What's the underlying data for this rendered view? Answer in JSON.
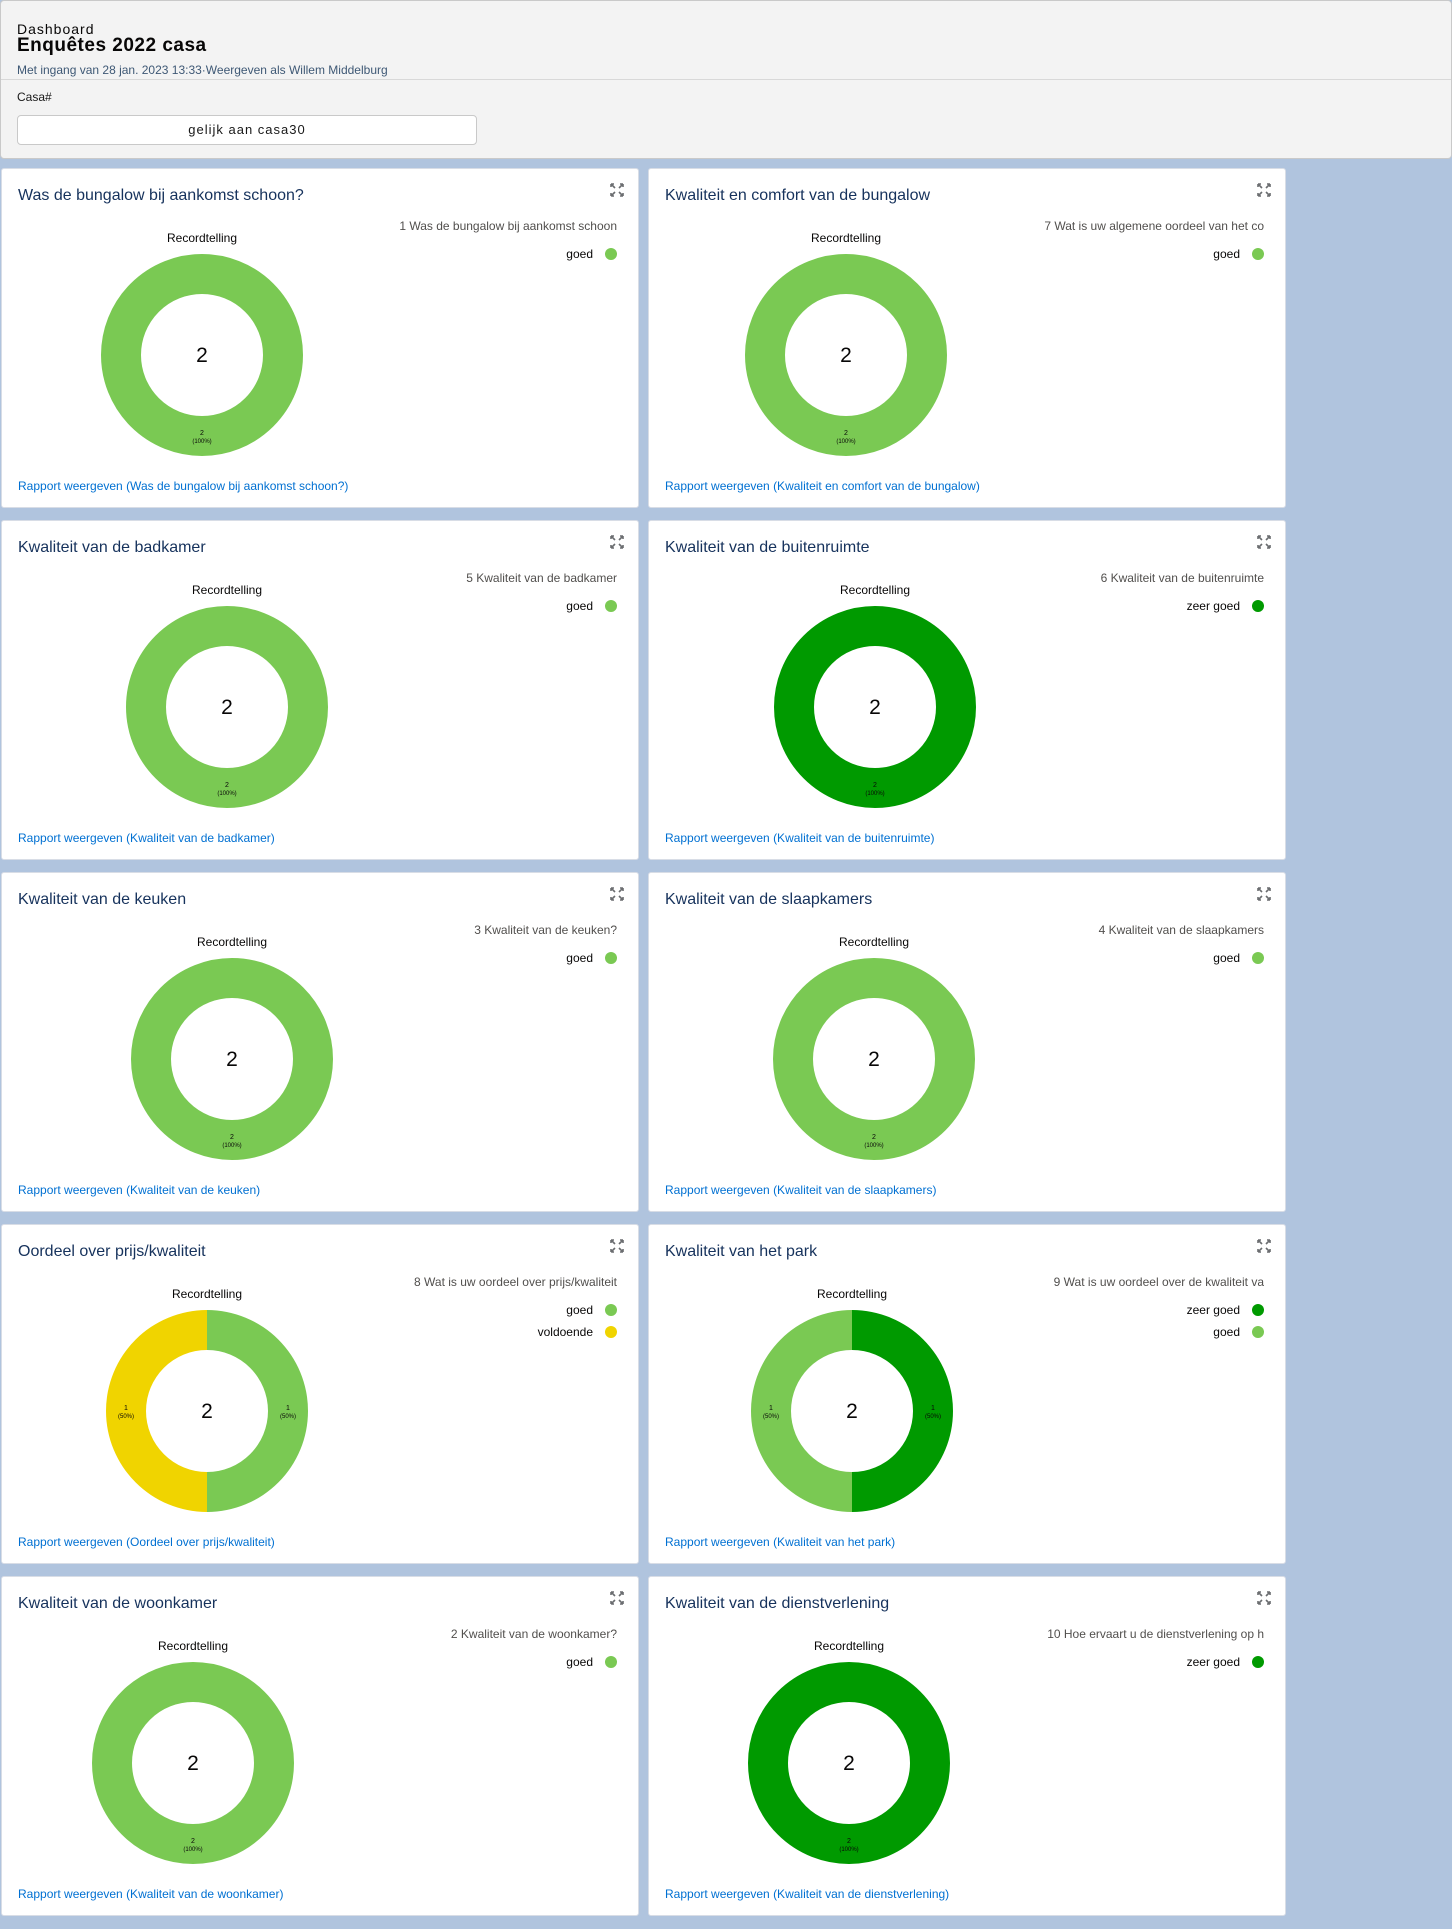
{
  "header": {
    "subtitle": "Dashboard",
    "title": "Enquêtes 2022 casa",
    "meta": "Met ingang van 28 jan. 2023 13:33·Weergeven als Willem Middelburg",
    "filter_label": "Casa#",
    "filter_value": "gelijk aan casa30"
  },
  "colors": {
    "goed": "#7ac953",
    "zeer_goed": "#009a00",
    "voldoende": "#f0d400",
    "link": "#0070d2"
  },
  "cards": [
    {
      "title": "Was de bungalow bij aankomst schoon?",
      "legend_title": "1 Was de bungalow bij aankomst schoon",
      "chart_heading": "Recordtelling",
      "total": "2",
      "link": "Rapport weergeven (Was de bungalow bij aankomst schoon?)",
      "legend": [
        {
          "label": "goed",
          "color": "#7ac953"
        }
      ],
      "chart_data": {
        "type": "pie",
        "categories": [
          "goed"
        ],
        "values": [
          2
        ],
        "labels": [
          [
            "2",
            "(100%)"
          ]
        ],
        "colors": [
          "#7ac953"
        ]
      }
    },
    {
      "title": "Kwaliteit en comfort van de bungalow",
      "legend_title": "7 Wat is uw  algemene oordeel van het co",
      "chart_heading": "Recordtelling",
      "total": "2",
      "link": "Rapport weergeven (Kwaliteit en comfort van de bungalow)",
      "legend": [
        {
          "label": "goed",
          "color": "#7ac953"
        }
      ],
      "chart_data": {
        "type": "pie",
        "categories": [
          "goed"
        ],
        "values": [
          2
        ],
        "labels": [
          [
            "2",
            "(100%)"
          ]
        ],
        "colors": [
          "#7ac953"
        ]
      }
    },
    {
      "title": "Kwaliteit van de badkamer",
      "legend_title": "5 Kwaliteit van de badkamer",
      "chart_heading": "Recordtelling",
      "total": "2",
      "link": "Rapport weergeven (Kwaliteit van de badkamer)",
      "legend": [
        {
          "label": "goed",
          "color": "#7ac953"
        }
      ],
      "chart_data": {
        "type": "pie",
        "categories": [
          "goed"
        ],
        "values": [
          2
        ],
        "labels": [
          [
            "2",
            "(100%)"
          ]
        ],
        "colors": [
          "#7ac953"
        ]
      }
    },
    {
      "title": "Kwaliteit van de buitenruimte",
      "legend_title": "6 Kwaliteit van de buitenruimte",
      "chart_heading": "Recordtelling",
      "total": "2",
      "link": "Rapport weergeven (Kwaliteit van de buitenruimte)",
      "legend": [
        {
          "label": "zeer goed",
          "color": "#009a00"
        }
      ],
      "chart_data": {
        "type": "pie",
        "categories": [
          "zeer goed"
        ],
        "values": [
          2
        ],
        "labels": [
          [
            "2",
            "(100%)"
          ]
        ],
        "colors": [
          "#009a00"
        ]
      }
    },
    {
      "title": "Kwaliteit van de keuken",
      "legend_title": "3 Kwaliteit van de keuken?",
      "chart_heading": "Recordtelling",
      "total": "2",
      "link": "Rapport weergeven (Kwaliteit van de keuken)",
      "legend": [
        {
          "label": "goed",
          "color": "#7ac953"
        }
      ],
      "chart_data": {
        "type": "pie",
        "categories": [
          "goed"
        ],
        "values": [
          2
        ],
        "labels": [
          [
            "2",
            "(100%)"
          ]
        ],
        "colors": [
          "#7ac953"
        ]
      }
    },
    {
      "title": "Kwaliteit van de slaapkamers",
      "legend_title": "4 Kwaliteit van de slaapkamers",
      "chart_heading": "Recordtelling",
      "total": "2",
      "link": "Rapport weergeven (Kwaliteit van de slaapkamers)",
      "legend": [
        {
          "label": "goed",
          "color": "#7ac953"
        }
      ],
      "chart_data": {
        "type": "pie",
        "categories": [
          "goed"
        ],
        "values": [
          2
        ],
        "labels": [
          [
            "2",
            "(100%)"
          ]
        ],
        "colors": [
          "#7ac953"
        ]
      }
    },
    {
      "title": "Oordeel over prijs/kwaliteit",
      "legend_title": "8 Wat is uw oordeel over prijs/kwaliteit",
      "chart_heading": "Recordtelling",
      "total": "2",
      "link": "Rapport weergeven (Oordeel over prijs/kwaliteit)",
      "legend": [
        {
          "label": "goed",
          "color": "#7ac953"
        },
        {
          "label": "voldoende",
          "color": "#f0d400"
        }
      ],
      "chart_data": {
        "type": "pie",
        "categories": [
          "goed",
          "voldoende"
        ],
        "values": [
          1,
          1
        ],
        "labels": [
          [
            "1",
            "(50%)"
          ],
          [
            "1",
            "(50%)"
          ]
        ],
        "colors": [
          "#7ac953",
          "#f0d400"
        ]
      }
    },
    {
      "title": "Kwaliteit van het park",
      "legend_title": "9 Wat is uw oordeel over de kwaliteit va",
      "chart_heading": "Recordtelling",
      "total": "2",
      "link": "Rapport weergeven (Kwaliteit van het park)",
      "legend": [
        {
          "label": "zeer goed",
          "color": "#009a00"
        },
        {
          "label": "goed",
          "color": "#7ac953"
        }
      ],
      "chart_data": {
        "type": "pie",
        "categories": [
          "zeer goed",
          "goed"
        ],
        "values": [
          1,
          1
        ],
        "labels": [
          [
            "1",
            "(50%)"
          ],
          [
            "1",
            "(50%)"
          ]
        ],
        "colors": [
          "#009a00",
          "#7ac953"
        ]
      }
    },
    {
      "title": "Kwaliteit van de woonkamer",
      "legend_title": "2 Kwaliteit van de woonkamer?",
      "chart_heading": "Recordtelling",
      "total": "2",
      "link": "Rapport weergeven (Kwaliteit van de woonkamer)",
      "legend": [
        {
          "label": "goed",
          "color": "#7ac953"
        }
      ],
      "chart_data": {
        "type": "pie",
        "categories": [
          "goed"
        ],
        "values": [
          2
        ],
        "labels": [
          [
            "2",
            "(100%)"
          ]
        ],
        "colors": [
          "#7ac953"
        ]
      }
    },
    {
      "title": "Kwaliteit van de dienstverlening",
      "legend_title": "10 Hoe ervaart u de dienstverlening op h",
      "chart_heading": "Recordtelling",
      "total": "2",
      "link": "Rapport weergeven (Kwaliteit van de dienstverlening)",
      "legend": [
        {
          "label": "zeer goed",
          "color": "#009a00"
        }
      ],
      "chart_data": {
        "type": "pie",
        "categories": [
          "zeer goed"
        ],
        "values": [
          2
        ],
        "labels": [
          [
            "2",
            "(100%)"
          ]
        ],
        "colors": [
          "#009a00"
        ]
      }
    }
  ]
}
